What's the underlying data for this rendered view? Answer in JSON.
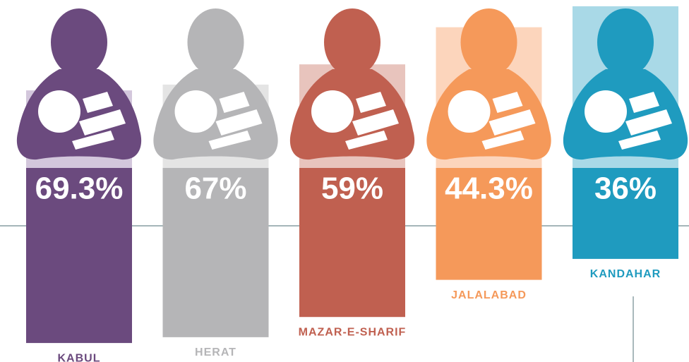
{
  "chart_data": {
    "type": "bar",
    "categories": [
      "KABUL",
      "HERAT",
      "MAZAR-E-SHARIF",
      "JALALABAD",
      "KANDAHAR"
    ],
    "values": [
      69.3,
      67,
      59,
      44.3,
      36
    ],
    "value_labels": [
      "69.3%",
      "67%",
      "59%",
      "44.3%",
      "36%"
    ],
    "colors": [
      "#6b4a7e",
      "#b5b5b7",
      "#c06050",
      "#f5995a",
      "#1f9bbf"
    ],
    "light_colors": [
      "#d3c7dc",
      "#e4e4e4",
      "#e8c4bd",
      "#fcd5bc",
      "#a9d9e7"
    ],
    "ylim": [
      0,
      100
    ]
  }
}
